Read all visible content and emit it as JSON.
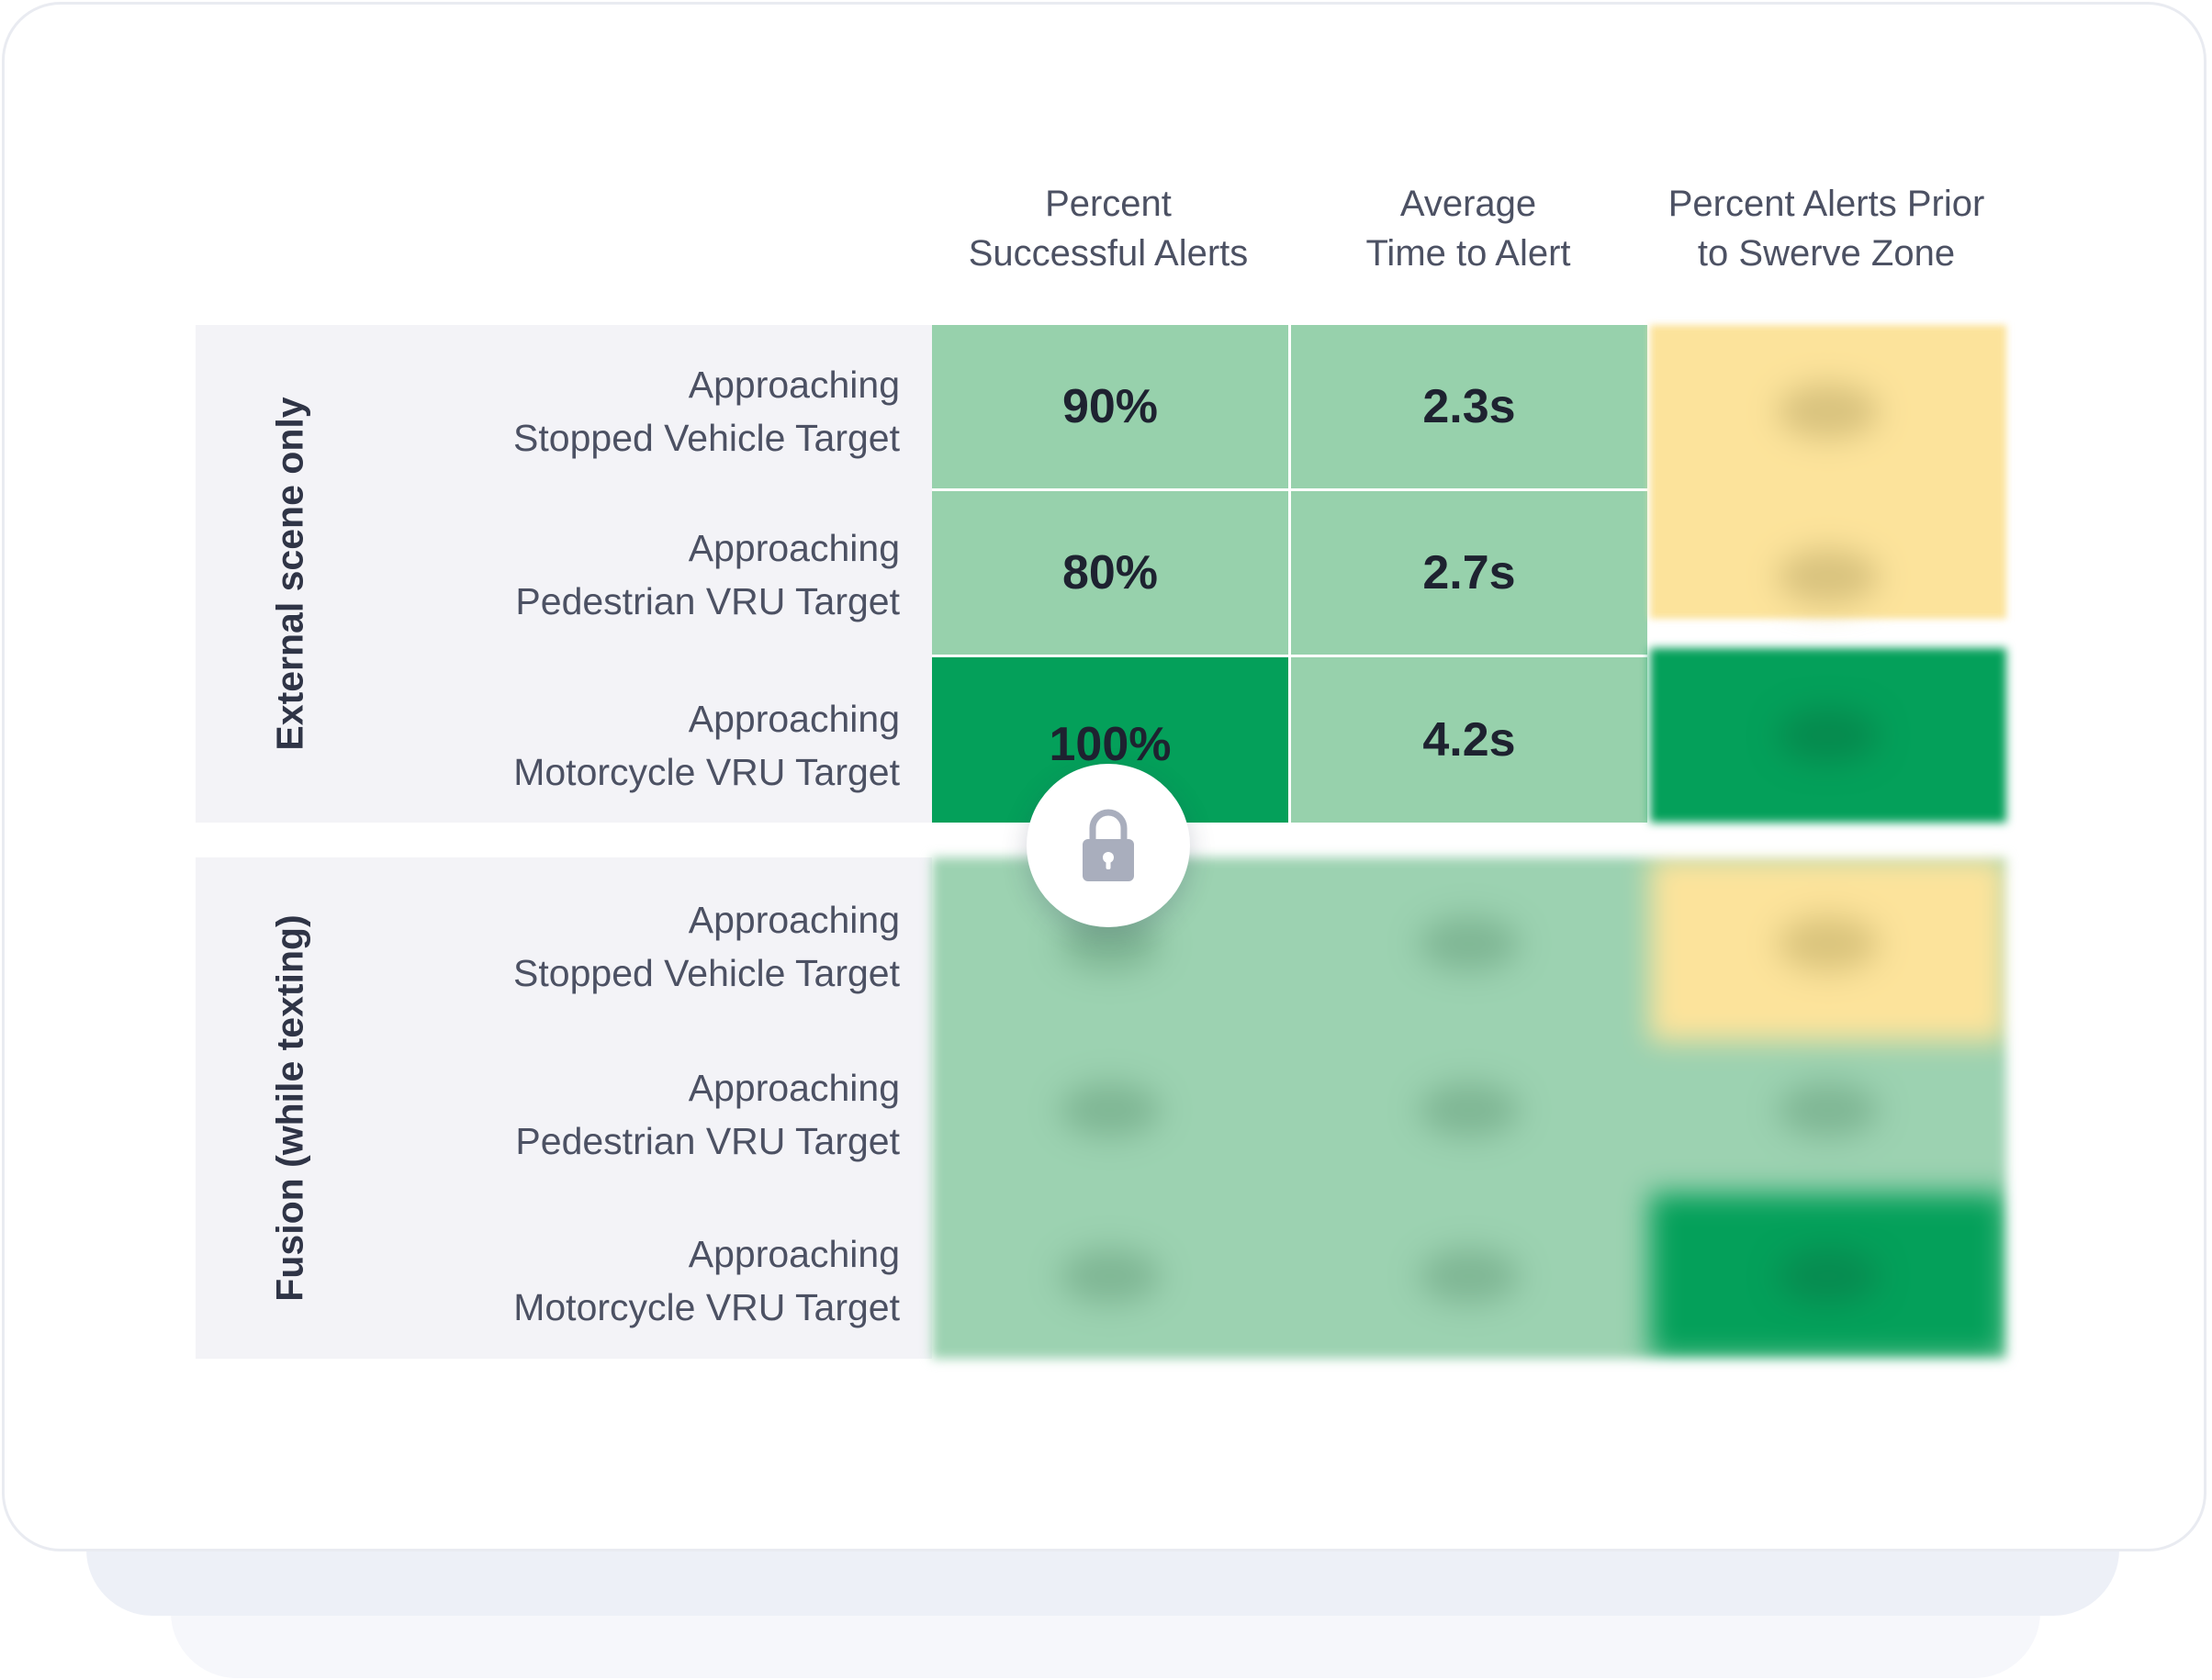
{
  "columns": [
    {
      "line1": "Percent",
      "line2": "Successful Alerts"
    },
    {
      "line1": "Average",
      "line2": "Time to Alert"
    },
    {
      "line1": "Percent Alerts Prior",
      "line2": "to Swerve Zone"
    }
  ],
  "groups": [
    {
      "label": "External scene only",
      "rows": [
        {
          "line1": "Approaching",
          "line2": "Stopped Vehicle Target",
          "success": "90%",
          "time": "2.3s",
          "swerve_level": "yellow"
        },
        {
          "line1": "Approaching",
          "line2": "Pedestrian VRU Target",
          "success": "80%",
          "time": "2.7s",
          "swerve_level": "yellow"
        },
        {
          "line1": "Approaching",
          "line2": "Motorcycle VRU Target",
          "success": "100%",
          "time": "4.2s",
          "swerve_level": "dark-green"
        }
      ]
    },
    {
      "label": "Fusion (while texting)",
      "locked": true,
      "rows": [
        {
          "line1": "Approaching",
          "line2": "Stopped Vehicle Target",
          "swerve_level": "yellow"
        },
        {
          "line1": "Approaching",
          "line2": "Pedestrian VRU Target",
          "swerve_level": "light-green"
        },
        {
          "line1": "Approaching",
          "line2": "Motorcycle VRU Target",
          "swerve_level": "dark-green"
        }
      ]
    }
  ],
  "colors": {
    "light_green": "#97d1ac",
    "dark_green": "#04a05a",
    "yellow": "#fce39b",
    "lock_icon": "#a9aebd"
  },
  "icons": {
    "lock": "lock-icon"
  }
}
